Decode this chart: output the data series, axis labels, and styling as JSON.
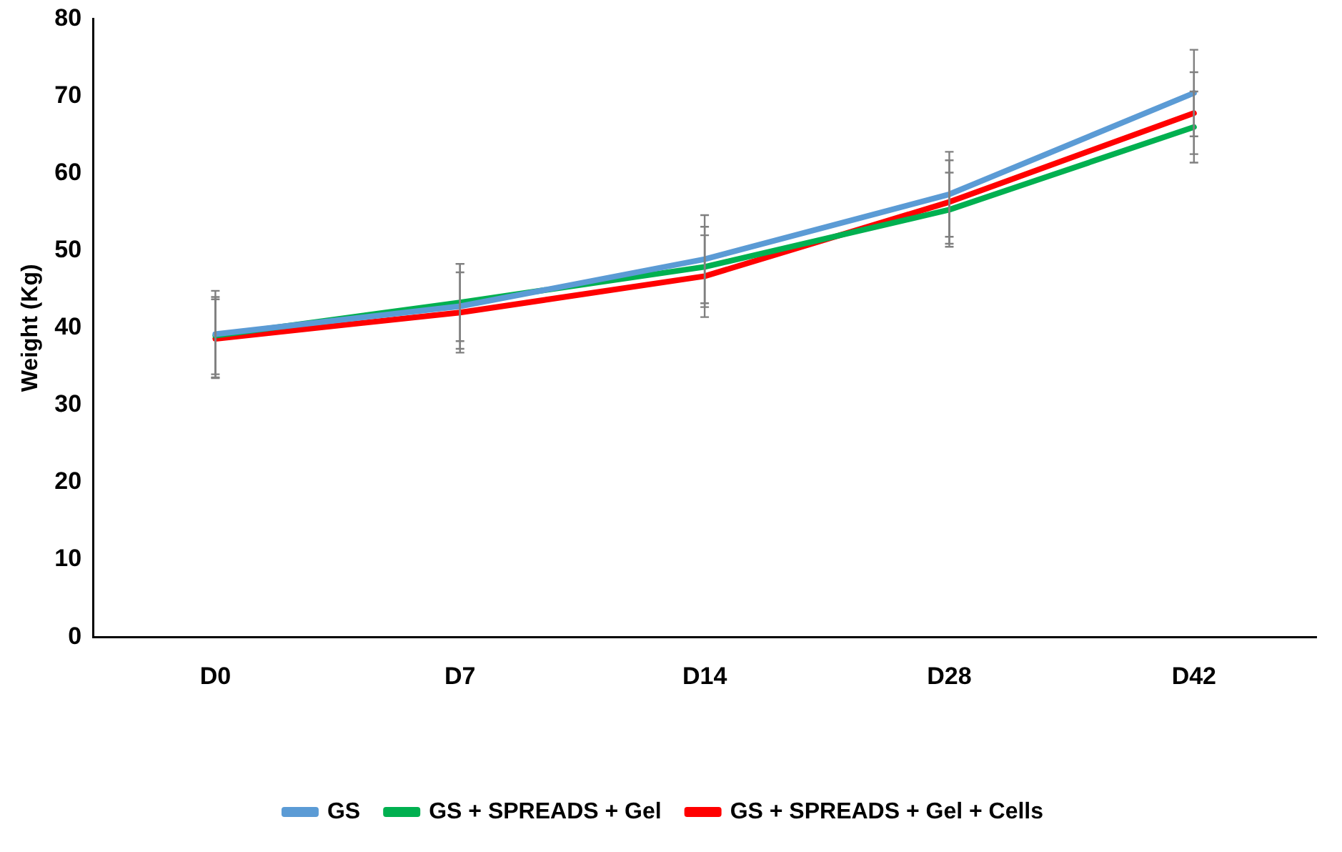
{
  "chart_data": {
    "type": "line",
    "ylabel": "Weight (Kg)",
    "categories": [
      "D0",
      "D7",
      "D14",
      "D28",
      "D42"
    ],
    "ylim": [
      0,
      80
    ],
    "yticks": [
      0,
      10,
      20,
      30,
      40,
      50,
      60,
      70,
      80
    ],
    "grid": false,
    "legend": "bottom",
    "marker": "none",
    "line_style": "solid",
    "series": [
      {
        "name": "GS",
        "color": "#5b9bd5",
        "values": [
          39.2,
          42.8,
          48.9,
          57.3,
          70.4
        ],
        "errors": [
          5.6,
          5.5,
          5.7,
          5.5,
          5.6
        ]
      },
      {
        "name": "GS + SPREADS + Gel",
        "color": "#00b050",
        "values": [
          39.0,
          43.3,
          47.9,
          55.3,
          66.0
        ],
        "errors": [
          5.0,
          5.0,
          5.2,
          4.8,
          4.6
        ]
      },
      {
        "name": "GS + SPREADS + Gel + Cells",
        "color": "#ff0000",
        "values": [
          38.6,
          42.0,
          46.7,
          56.3,
          67.8
        ],
        "errors": [
          5.1,
          5.2,
          5.3,
          5.4,
          5.3
        ]
      }
    ]
  }
}
